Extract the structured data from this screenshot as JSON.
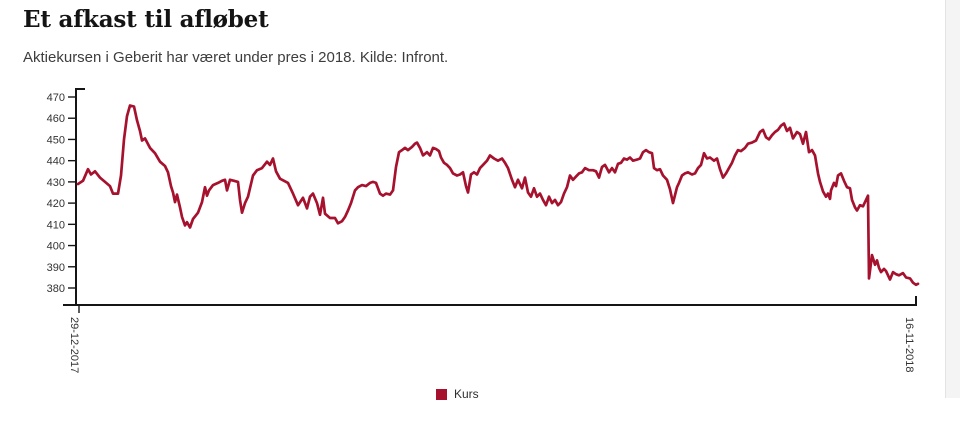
{
  "header": {
    "title": "Et afkast til afløbet",
    "subtitle": "Aktiekursen i Geberit har været under pres i 2018. Kilde: Infront."
  },
  "legend": {
    "label": "Kurs",
    "swatch_color": "#a6122e",
    "position": "bottom-center"
  },
  "chart_data": {
    "type": "line",
    "title": "Et afkast til afløbet",
    "series_name": "Kurs",
    "line_color": "#a6122e",
    "axis_color": "#151515",
    "tick_label_color": "#333333",
    "grid": false,
    "x_axis": {
      "start_label": "29-12-2017",
      "end_label": "16-11-2018",
      "labels_rotated_deg": 90
    },
    "y_axis": {
      "ticks": [
        470,
        460,
        450,
        440,
        430,
        420,
        410,
        400,
        390,
        380
      ],
      "min": 380,
      "max": 470
    },
    "points": [
      [
        0,
        429
      ],
      [
        5,
        430.5
      ],
      [
        10,
        436
      ],
      [
        13,
        433.5
      ],
      [
        17,
        435
      ],
      [
        22,
        432
      ],
      [
        27,
        430
      ],
      [
        32,
        428
      ],
      [
        35,
        424.5
      ],
      [
        40,
        424.5
      ],
      [
        43,
        433
      ],
      [
        46,
        450
      ],
      [
        49,
        461
      ],
      [
        52,
        466
      ],
      [
        56,
        465.5
      ],
      [
        59,
        459
      ],
      [
        62,
        454
      ],
      [
        64,
        449.5
      ],
      [
        67,
        450.5
      ],
      [
        72,
        446
      ],
      [
        77,
        443.5
      ],
      [
        82,
        439.5
      ],
      [
        87,
        437.5
      ],
      [
        90,
        434.5
      ],
      [
        93,
        428
      ],
      [
        95,
        425
      ],
      [
        97,
        420.5
      ],
      [
        99,
        424
      ],
      [
        102,
        418
      ],
      [
        104,
        413.5
      ],
      [
        107,
        409.5
      ],
      [
        109,
        411
      ],
      [
        112,
        408.5
      ],
      [
        115,
        412.5
      ],
      [
        120,
        415.5
      ],
      [
        124,
        420.5
      ],
      [
        127,
        427.5
      ],
      [
        129,
        423.5
      ],
      [
        131,
        426
      ],
      [
        135,
        428.5
      ],
      [
        140,
        429.5
      ],
      [
        144,
        430.5
      ],
      [
        147,
        431
      ],
      [
        149,
        426
      ],
      [
        152,
        431
      ],
      [
        156,
        430.5
      ],
      [
        160,
        430
      ],
      [
        162,
        421.5
      ],
      [
        164,
        415.5
      ],
      [
        167,
        420
      ],
      [
        170,
        423
      ],
      [
        175,
        433
      ],
      [
        179,
        435.5
      ],
      [
        184,
        436.5
      ],
      [
        189,
        439.5
      ],
      [
        192,
        438
      ],
      [
        195,
        441
      ],
      [
        198,
        435
      ],
      [
        202,
        431.5
      ],
      [
        206,
        430.5
      ],
      [
        210,
        429.5
      ],
      [
        215,
        424.5
      ],
      [
        220,
        419
      ],
      [
        225,
        422.5
      ],
      [
        229,
        417.5
      ],
      [
        232,
        423
      ],
      [
        235,
        424.5
      ],
      [
        239,
        420
      ],
      [
        242,
        414.5
      ],
      [
        245,
        422.5
      ],
      [
        247,
        415
      ],
      [
        252,
        413
      ],
      [
        257,
        413
      ],
      [
        260,
        410.5
      ],
      [
        264,
        411.5
      ],
      [
        267,
        413.5
      ],
      [
        270,
        416.5
      ],
      [
        273,
        420
      ],
      [
        277,
        426
      ],
      [
        280,
        427.5
      ],
      [
        284,
        428.5
      ],
      [
        288,
        428
      ],
      [
        292,
        429.5
      ],
      [
        295,
        430
      ],
      [
        298,
        429.5
      ],
      [
        302,
        424.5
      ],
      [
        305,
        423.5
      ],
      [
        308,
        424.5
      ],
      [
        312,
        424
      ],
      [
        315,
        426
      ],
      [
        318,
        437
      ],
      [
        321,
        444
      ],
      [
        324,
        445
      ],
      [
        327,
        446
      ],
      [
        330,
        445
      ],
      [
        334,
        446.5
      ],
      [
        337,
        448
      ],
      [
        339,
        448.5
      ],
      [
        342,
        446
      ],
      [
        345,
        442.5
      ],
      [
        349,
        444
      ],
      [
        352,
        442.5
      ],
      [
        355,
        446
      ],
      [
        358,
        445.5
      ],
      [
        361,
        444.5
      ],
      [
        363,
        441.5
      ],
      [
        366,
        439
      ],
      [
        369,
        438
      ],
      [
        372,
        436.5
      ],
      [
        375,
        434
      ],
      [
        379,
        433
      ],
      [
        382,
        433.5
      ],
      [
        385,
        434.5
      ],
      [
        388,
        428
      ],
      [
        390,
        425
      ],
      [
        393,
        433.5
      ],
      [
        396,
        434.5
      ],
      [
        399,
        433.5
      ],
      [
        402,
        436.5
      ],
      [
        405,
        438
      ],
      [
        409,
        440
      ],
      [
        412,
        442.5
      ],
      [
        416,
        441
      ],
      [
        420,
        440
      ],
      [
        424,
        441
      ],
      [
        427,
        439
      ],
      [
        430,
        436.5
      ],
      [
        434,
        431
      ],
      [
        437,
        427.5
      ],
      [
        440,
        431
      ],
      [
        444,
        427
      ],
      [
        447,
        432
      ],
      [
        450,
        425
      ],
      [
        453,
        423
      ],
      [
        456,
        427
      ],
      [
        459,
        423
      ],
      [
        462,
        424.5
      ],
      [
        465,
        421.5
      ],
      [
        468,
        419
      ],
      [
        471,
        423
      ],
      [
        474,
        420
      ],
      [
        477,
        421.5
      ],
      [
        480,
        419
      ],
      [
        483,
        420.5
      ],
      [
        486,
        424.5
      ],
      [
        489,
        427.5
      ],
      [
        492,
        433
      ],
      [
        495,
        431
      ],
      [
        498,
        432.5
      ],
      [
        501,
        434
      ],
      [
        504,
        434.5
      ],
      [
        507,
        436.5
      ],
      [
        511,
        435.5
      ],
      [
        515,
        435.5
      ],
      [
        518,
        435
      ],
      [
        521,
        432
      ],
      [
        524,
        437
      ],
      [
        527,
        438
      ],
      [
        531,
        434.5
      ],
      [
        534,
        436.5
      ],
      [
        537,
        434.5
      ],
      [
        540,
        438.5
      ],
      [
        543,
        439
      ],
      [
        546,
        441
      ],
      [
        549,
        440.5
      ],
      [
        552,
        441.5
      ],
      [
        555,
        440
      ],
      [
        559,
        440.5
      ],
      [
        562,
        441
      ],
      [
        565,
        444
      ],
      [
        568,
        445
      ],
      [
        571,
        444
      ],
      [
        574,
        443.5
      ],
      [
        576,
        436.5
      ],
      [
        579,
        435.5
      ],
      [
        582,
        436
      ],
      [
        585,
        433
      ],
      [
        589,
        431
      ],
      [
        592,
        426.5
      ],
      [
        595,
        420
      ],
      [
        599,
        427.5
      ],
      [
        601,
        429.5
      ],
      [
        604,
        433
      ],
      [
        607,
        434
      ],
      [
        610,
        434.5
      ],
      [
        614,
        433.5
      ],
      [
        617,
        434
      ],
      [
        620,
        436.5
      ],
      [
        623,
        438
      ],
      [
        626,
        443.5
      ],
      [
        629,
        441
      ],
      [
        632,
        441.5
      ],
      [
        636,
        440
      ],
      [
        639,
        441
      ],
      [
        642,
        436
      ],
      [
        645,
        432
      ],
      [
        648,
        434
      ],
      [
        651,
        436.5
      ],
      [
        654,
        439
      ],
      [
        657,
        442.5
      ],
      [
        660,
        445
      ],
      [
        663,
        444.5
      ],
      [
        667,
        446
      ],
      [
        670,
        448
      ],
      [
        674,
        448.5
      ],
      [
        678,
        449.5
      ],
      [
        682,
        453.5
      ],
      [
        685,
        454.5
      ],
      [
        688,
        451
      ],
      [
        691,
        450
      ],
      [
        694,
        452
      ],
      [
        697,
        453.5
      ],
      [
        700,
        454.5
      ],
      [
        703,
        456.5
      ],
      [
        706,
        457.5
      ],
      [
        709,
        454
      ],
      [
        712,
        455.5
      ],
      [
        715,
        450.5
      ],
      [
        719,
        453.5
      ],
      [
        722,
        452.5
      ],
      [
        725,
        448
      ],
      [
        728,
        453.5
      ],
      [
        731,
        444
      ],
      [
        734,
        445
      ],
      [
        737,
        442.5
      ],
      [
        740,
        434
      ],
      [
        742,
        430
      ],
      [
        745,
        425.5
      ],
      [
        748,
        423
      ],
      [
        750,
        424.5
      ],
      [
        752,
        422
      ],
      [
        753,
        426
      ],
      [
        756,
        429.5
      ],
      [
        758,
        428
      ],
      [
        760,
        433
      ],
      [
        763,
        434
      ],
      [
        766,
        430.5
      ],
      [
        769,
        427.5
      ],
      [
        772,
        427
      ],
      [
        774,
        421.5
      ],
      [
        777,
        418
      ],
      [
        779,
        416.5
      ],
      [
        782,
        419
      ],
      [
        785,
        418.5
      ],
      [
        788,
        421.5
      ],
      [
        790,
        423.5
      ],
      [
        791,
        384.5
      ],
      [
        794,
        395.5
      ],
      [
        797,
        391
      ],
      [
        799,
        393
      ],
      [
        801,
        389.5
      ],
      [
        803,
        387.5
      ],
      [
        806,
        389
      ],
      [
        808,
        388
      ],
      [
        812,
        384
      ],
      [
        815,
        387.5
      ],
      [
        818,
        386.5
      ],
      [
        821,
        386
      ],
      [
        825,
        387
      ],
      [
        828,
        385
      ],
      [
        832,
        384.5
      ],
      [
        835,
        382.5
      ],
      [
        838,
        381.5
      ],
      [
        840,
        382
      ]
    ]
  }
}
